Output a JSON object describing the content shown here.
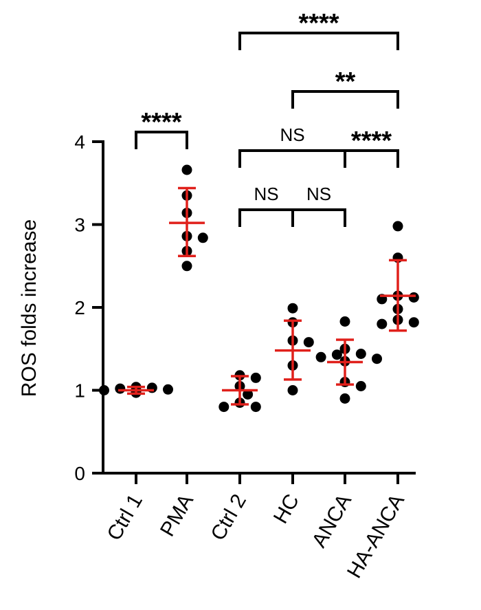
{
  "chart_data": {
    "type": "scatter",
    "title": "",
    "xlabel": "",
    "ylabel": "ROS folds increase",
    "ylim": [
      0,
      4
    ],
    "yticks": [
      0,
      1,
      2,
      3,
      4
    ],
    "grid": false,
    "legend": "none",
    "colors": {
      "points": "#000000",
      "mean_sd": "#e0201b",
      "axes": "#000000"
    },
    "categories": [
      "Ctrl 1",
      "PMA",
      "Ctrl 2",
      "HC",
      "ANCA",
      "HA-ANCA"
    ],
    "groups": [
      {
        "name": "Ctrl 1",
        "mean": 1.0,
        "sd_low": 0.96,
        "sd_high": 1.04,
        "points": [
          0.97,
          1.0,
          1.0,
          0.98,
          1.03,
          1.02,
          0.99,
          1.01,
          1.04,
          1.0
        ]
      },
      {
        "name": "PMA",
        "mean": 3.02,
        "sd_low": 2.62,
        "sd_high": 3.44,
        "points": [
          3.66,
          3.35,
          3.14,
          2.86,
          2.84,
          2.68,
          2.5
        ]
      },
      {
        "name": "Ctrl 2",
        "mean": 1.0,
        "sd_low": 0.83,
        "sd_high": 1.17,
        "points": [
          1.18,
          1.15,
          1.05,
          0.95,
          0.85,
          0.8,
          0.8
        ]
      },
      {
        "name": "HC",
        "mean": 1.48,
        "sd_low": 1.13,
        "sd_high": 1.84,
        "points": [
          1.99,
          1.82,
          1.6,
          1.58,
          1.3,
          1.0
        ]
      },
      {
        "name": "ANCA",
        "mean": 1.34,
        "sd_low": 1.07,
        "sd_high": 1.61,
        "points": [
          1.83,
          1.5,
          1.44,
          1.43,
          1.4,
          1.38,
          1.35,
          1.1,
          1.05,
          0.9
        ]
      },
      {
        "name": "HA-ANCA",
        "mean": 2.14,
        "sd_low": 1.72,
        "sd_high": 2.57,
        "points": [
          2.98,
          2.6,
          2.14,
          2.12,
          2.1,
          1.98,
          1.85,
          1.82,
          1.8
        ]
      }
    ],
    "comparisons": [
      {
        "from": "Ctrl 1",
        "to": "PMA",
        "label": "****",
        "level": 0
      },
      {
        "from": "Ctrl 2",
        "to": "HC",
        "label": "NS",
        "level": 0
      },
      {
        "from": "HC",
        "to": "ANCA",
        "label": "NS",
        "level": 0
      },
      {
        "from": "Ctrl 2",
        "to": "ANCA",
        "label": "NS",
        "level": 1
      },
      {
        "from": "ANCA",
        "to": "HA-ANCA",
        "label": "****",
        "level": 1
      },
      {
        "from": "HC",
        "to": "HA-ANCA",
        "label": "**",
        "level": 2
      },
      {
        "from": "Ctrl 2",
        "to": "HA-ANCA",
        "label": "****",
        "level": 3
      }
    ]
  }
}
